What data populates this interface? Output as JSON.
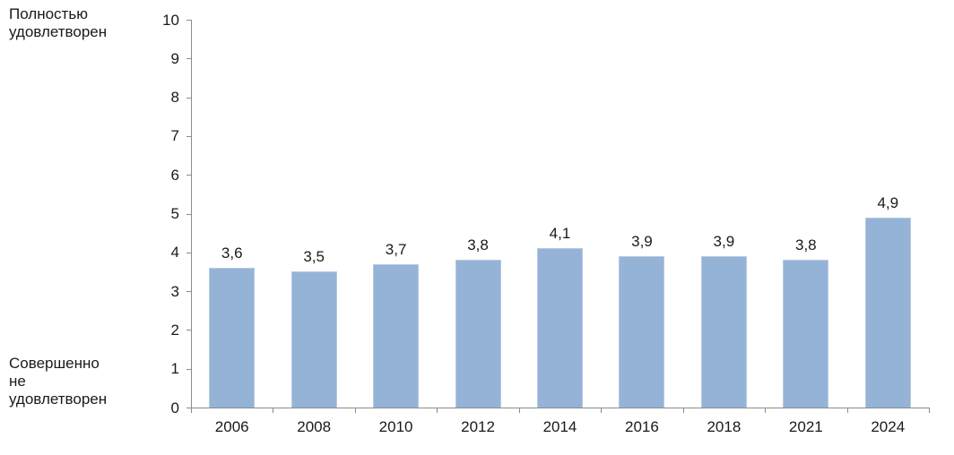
{
  "chart_data": {
    "type": "bar",
    "title": "",
    "categories": [
      "2006",
      "2008",
      "2010",
      "2012",
      "2014",
      "2016",
      "2018",
      "2021",
      "2024"
    ],
    "values": [
      3.6,
      3.5,
      3.7,
      3.8,
      4.1,
      3.9,
      3.9,
      3.8,
      4.9
    ],
    "data_labels": [
      "3,6",
      "3,5",
      "3,7",
      "3,8",
      "4,1",
      "3,9",
      "3,9",
      "3,8",
      "4,9"
    ],
    "xlabel": "",
    "ylabel": "",
    "y_axis": {
      "min": 0,
      "max": 10,
      "step": 1,
      "ticks": [
        "10",
        "9",
        "8",
        "7",
        "6",
        "5",
        "4",
        "3",
        "2",
        "1",
        "0"
      ],
      "top_label_lines": [
        "Полностью",
        "удовлетворен"
      ],
      "bottom_label_lines": [
        "Совершенно",
        "не",
        "удовлетворен"
      ]
    },
    "grid": false,
    "legend": false,
    "colors": {
      "bar_fill": "#95B3D7",
      "bar_border": "#B7C9E2",
      "axis": "#8C8C8C",
      "text": "#1A1A1A"
    }
  }
}
